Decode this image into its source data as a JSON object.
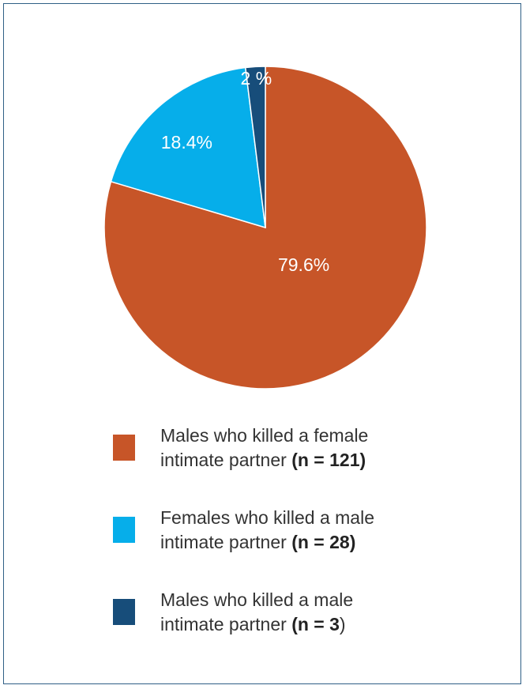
{
  "chart_data": {
    "type": "pie",
    "slices": [
      {
        "label_line1": "Males who killed a female",
        "label_line2": "intimate partner",
        "count_text": "(n = 121)",
        "count_suffix": "",
        "n": 121,
        "percent": 79.6,
        "percent_label": "79.6%",
        "color": "#c75528"
      },
      {
        "label_line1": "Females who killed a male",
        "label_line2": "intimate partner",
        "count_text": "(n = 28)",
        "count_suffix": "",
        "n": 28,
        "percent": 18.4,
        "percent_label": "18.4%",
        "color": "#06aeea"
      },
      {
        "label_line1": "Males who killed a male",
        "label_line2": "intimate partner",
        "count_text": "(n = 3",
        "count_suffix": ")",
        "n": 3,
        "percent": 2,
        "percent_label": "2 %",
        "color": "#174d7a"
      }
    ],
    "start_angle_deg": 0,
    "direction": "clockwise"
  }
}
